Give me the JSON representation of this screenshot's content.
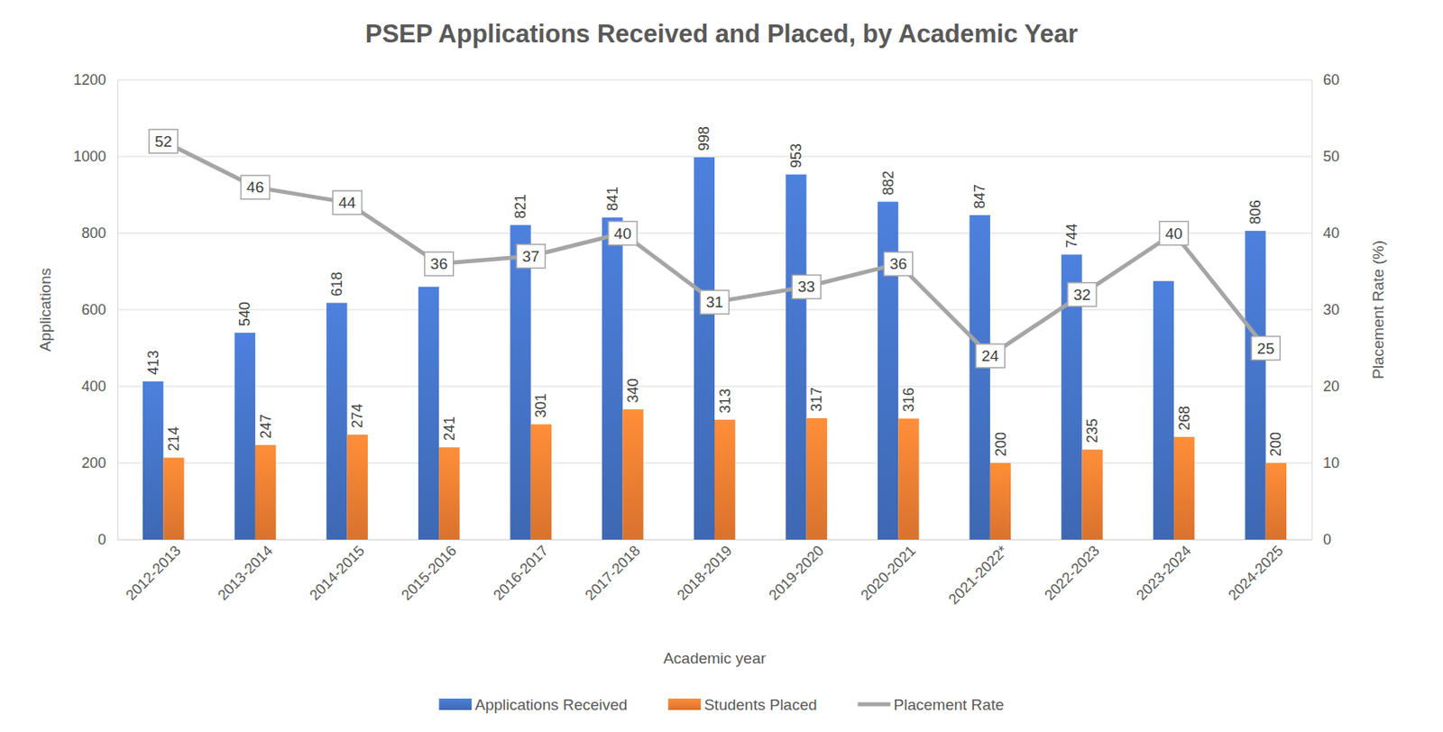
{
  "chart_data": {
    "type": "bar",
    "title": "PSEP Applications Received and Placed, by Academic Year",
    "x_label": "Academic year",
    "y_label": "Applications",
    "y2_label": "Placement Rate (%)",
    "categories": [
      "2012-2013",
      "2013-2014",
      "2014-2015",
      "2015-2016",
      "2016-2017",
      "2017-2018",
      "2018-2019",
      "2019-2020",
      "2020-2021",
      "2021-2022*",
      "2022-2023",
      "2023-2024",
      "2024-2025"
    ],
    "series": [
      {
        "name": "Applications Received",
        "color": "#4472c4",
        "values": [
          413,
          540,
          618,
          660,
          821,
          841,
          998,
          953,
          882,
          847,
          744,
          675,
          806
        ],
        "value_labels": [
          "413",
          "540",
          "618",
          null,
          "821",
          "841",
          "998",
          "953",
          "882",
          "847",
          "744",
          null,
          "806"
        ]
      },
      {
        "name": "Students Placed",
        "color": "#ed7d31",
        "values": [
          214,
          247,
          274,
          241,
          301,
          340,
          313,
          317,
          316,
          200,
          235,
          268,
          200
        ]
      },
      {
        "name": "Placement Rate",
        "type": "line",
        "axis": "y2",
        "color": "#a5a5a5",
        "values": [
          52,
          46,
          44,
          36,
          37,
          40,
          31,
          33,
          36,
          24,
          32,
          40,
          25
        ]
      }
    ],
    "ylim": [
      0,
      1200
    ],
    "yticks": [
      0,
      200,
      400,
      600,
      800,
      1000,
      1200
    ],
    "y2lim": [
      0,
      60
    ],
    "y2ticks": [
      0,
      10,
      20,
      30,
      40,
      50,
      60
    ],
    "grid": true,
    "legend": "bottom",
    "data_labels": true
  }
}
